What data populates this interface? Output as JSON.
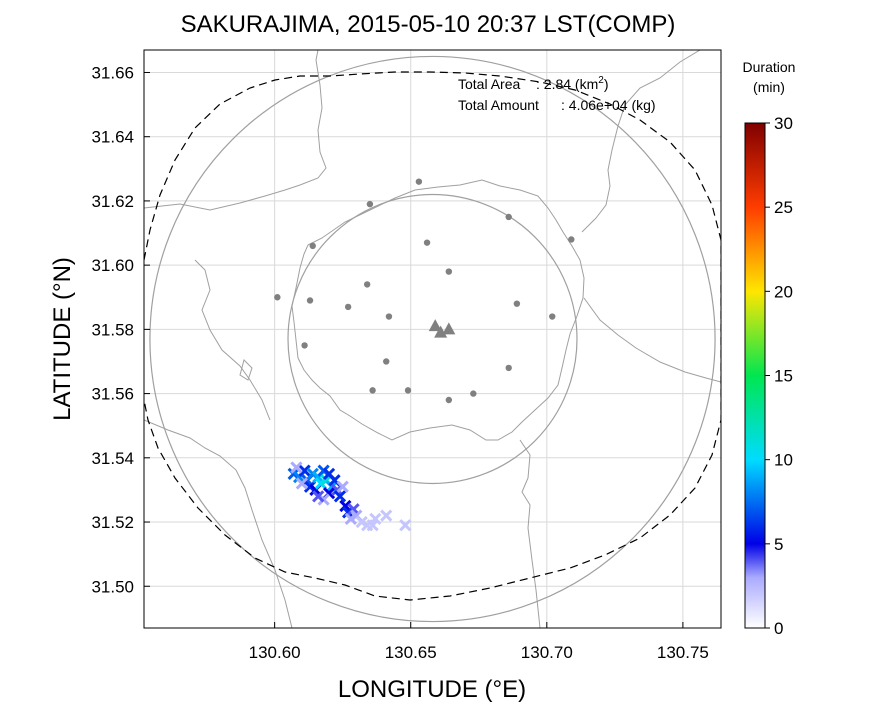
{
  "chart_data": {
    "type": "scatter",
    "title": "SAKURAJIMA, 2015-05-10 20:37 LST(COMP)",
    "xlabel": "LONGITUDE (°E)",
    "ylabel": "LATITUDE (°N)",
    "xlim": [
      130.552,
      130.764
    ],
    "ylim": [
      31.487,
      31.667
    ],
    "x_ticks": [
      130.6,
      130.65,
      130.7,
      130.75
    ],
    "x_tick_labels": [
      "130.60",
      "130.65",
      "130.70",
      "130.75"
    ],
    "y_ticks": [
      31.5,
      31.52,
      31.54,
      31.56,
      31.58,
      31.6,
      31.62,
      31.64,
      31.66
    ],
    "y_tick_labels": [
      "31.50",
      "31.52",
      "31.54",
      "31.56",
      "31.58",
      "31.60",
      "31.62",
      "31.64",
      "31.66"
    ],
    "grid": true,
    "annotations": {
      "area_label": "Total Area",
      "area_value": ": 2.84 (km",
      "area_sup": "2",
      "area_close": ")",
      "amount_label": "Total Amount",
      "amount_value": ": 4.06e+04 (kg)"
    },
    "colorbar": {
      "title_line1": "Duration",
      "title_line2": "(min)",
      "min": 0,
      "max": 30,
      "ticks": [
        0,
        5,
        10,
        15,
        20,
        25,
        30
      ],
      "tick_labels": [
        "0",
        "5",
        "10",
        "15",
        "20",
        "25",
        "30"
      ],
      "colors": [
        "#ffffff",
        "#0000ff",
        "#00ffff",
        "#00ff00",
        "#ffff00",
        "#ff0000",
        "#800000"
      ]
    },
    "circles": [
      {
        "name": "inner-range-circle",
        "center": [
          130.658,
          31.577
        ],
        "radius_deg_lat": 0.045
      },
      {
        "name": "outer-range-circle",
        "center": [
          130.658,
          31.577
        ],
        "radius_deg_lat": 0.088
      }
    ],
    "vents": [
      {
        "x": 130.659,
        "y": 31.581
      },
      {
        "x": 130.661,
        "y": 31.579
      },
      {
        "x": 130.664,
        "y": 31.58
      }
    ],
    "stations": [
      {
        "x": 130.653,
        "y": 31.626
      },
      {
        "x": 130.635,
        "y": 31.619
      },
      {
        "x": 130.686,
        "y": 31.615
      },
      {
        "x": 130.614,
        "y": 31.606
      },
      {
        "x": 130.656,
        "y": 31.607
      },
      {
        "x": 130.709,
        "y": 31.608
      },
      {
        "x": 130.664,
        "y": 31.598
      },
      {
        "x": 130.601,
        "y": 31.59
      },
      {
        "x": 130.634,
        "y": 31.594
      },
      {
        "x": 130.613,
        "y": 31.589
      },
      {
        "x": 130.689,
        "y": 31.588
      },
      {
        "x": 130.627,
        "y": 31.587
      },
      {
        "x": 130.642,
        "y": 31.584
      },
      {
        "x": 130.702,
        "y": 31.584
      },
      {
        "x": 130.611,
        "y": 31.575
      },
      {
        "x": 130.641,
        "y": 31.57
      },
      {
        "x": 130.686,
        "y": 31.568
      },
      {
        "x": 130.636,
        "y": 31.561
      },
      {
        "x": 130.649,
        "y": 31.561
      },
      {
        "x": 130.673,
        "y": 31.56
      },
      {
        "x": 130.664,
        "y": 31.558
      }
    ],
    "deposit_points": [
      {
        "x": 130.607,
        "y": 31.535,
        "v": 7
      },
      {
        "x": 130.609,
        "y": 31.534,
        "v": 8
      },
      {
        "x": 130.611,
        "y": 31.536,
        "v": 6
      },
      {
        "x": 130.612,
        "y": 31.533,
        "v": 7
      },
      {
        "x": 130.614,
        "y": 31.535,
        "v": 8
      },
      {
        "x": 130.613,
        "y": 31.531,
        "v": 6
      },
      {
        "x": 130.615,
        "y": 31.53,
        "v": 5
      },
      {
        "x": 130.616,
        "y": 31.534,
        "v": 9
      },
      {
        "x": 130.617,
        "y": 31.532,
        "v": 10
      },
      {
        "x": 130.618,
        "y": 31.536,
        "v": 7
      },
      {
        "x": 130.619,
        "y": 31.533,
        "v": 11
      },
      {
        "x": 130.62,
        "y": 31.535,
        "v": 6
      },
      {
        "x": 130.621,
        "y": 31.531,
        "v": 9
      },
      {
        "x": 130.62,
        "y": 31.529,
        "v": 5
      },
      {
        "x": 130.622,
        "y": 31.533,
        "v": 6
      },
      {
        "x": 130.623,
        "y": 31.53,
        "v": 4
      },
      {
        "x": 130.624,
        "y": 31.528,
        "v": 6
      },
      {
        "x": 130.625,
        "y": 31.531,
        "v": 3
      },
      {
        "x": 130.618,
        "y": 31.527,
        "v": 3
      },
      {
        "x": 130.616,
        "y": 31.528,
        "v": 4
      },
      {
        "x": 130.61,
        "y": 31.532,
        "v": 3
      },
      {
        "x": 130.608,
        "y": 31.537,
        "v": 3
      },
      {
        "x": 130.626,
        "y": 31.525,
        "v": 5
      },
      {
        "x": 130.627,
        "y": 31.523,
        "v": 6
      },
      {
        "x": 130.629,
        "y": 31.524,
        "v": 4
      },
      {
        "x": 130.63,
        "y": 31.522,
        "v": 3
      },
      {
        "x": 130.628,
        "y": 31.521,
        "v": 3
      },
      {
        "x": 130.632,
        "y": 31.52,
        "v": 2
      },
      {
        "x": 130.634,
        "y": 31.519,
        "v": 2
      },
      {
        "x": 130.636,
        "y": 31.519,
        "v": 2
      },
      {
        "x": 130.637,
        "y": 31.521,
        "v": 2
      },
      {
        "x": 130.641,
        "y": 31.522,
        "v": 2
      },
      {
        "x": 130.648,
        "y": 31.519,
        "v": 2
      }
    ]
  }
}
